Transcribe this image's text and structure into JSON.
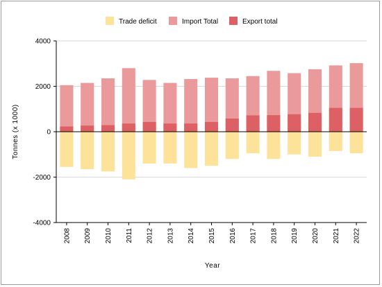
{
  "chart_data": {
    "type": "bar",
    "stacked": true,
    "title": "",
    "xlabel": "Year",
    "ylabel": "Tonnes (x 1000)",
    "ylim": [
      -4000,
      4000
    ],
    "yticks": [
      4000,
      2000,
      0,
      -2000,
      -4000
    ],
    "grid": {
      "horizontal": true,
      "vertical": false
    },
    "legend_position": "top",
    "categories": [
      "2008",
      "2009",
      "2010",
      "2011",
      "2012",
      "2013",
      "2014",
      "2015",
      "2016",
      "2017",
      "2018",
      "2019",
      "2020",
      "2021",
      "2022"
    ],
    "series": [
      {
        "name": "Trade deficit",
        "color": "#fde29a",
        "values": [
          -1550,
          -1650,
          -1750,
          -2100,
          -1400,
          -1400,
          -1600,
          -1500,
          -1200,
          -950,
          -1200,
          -1000,
          -1100,
          -850,
          -950
        ]
      },
      {
        "name": "Import Total",
        "color": "#ea9a9b",
        "values": [
          2050,
          2150,
          2350,
          2800,
          2280,
          2150,
          2320,
          2380,
          2350,
          2450,
          2680,
          2580,
          2750,
          2920,
          3020
        ]
      },
      {
        "name": "Export total",
        "color": "#dd6064",
        "values": [
          230,
          270,
          290,
          360,
          430,
          360,
          360,
          430,
          580,
          720,
          730,
          770,
          830,
          1050,
          1050
        ]
      }
    ]
  }
}
